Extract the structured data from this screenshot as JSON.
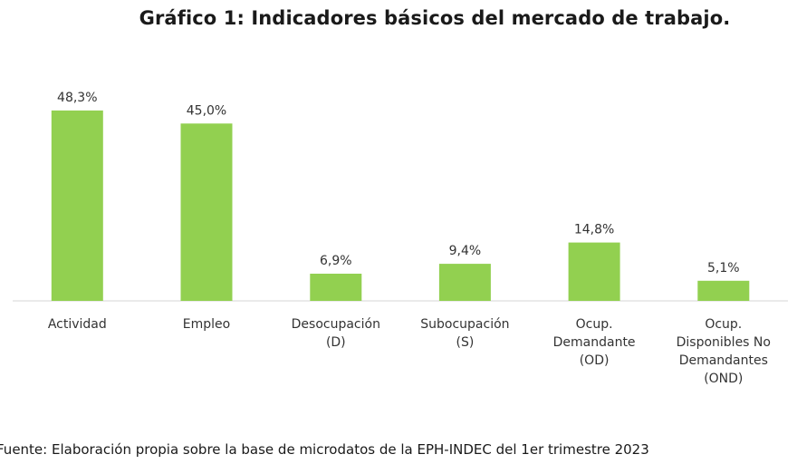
{
  "chart_data": {
    "type": "bar",
    "title": "Gráfico 1: Indicadores básicos del mercado de trabajo.",
    "categories": [
      "Actividad",
      "Empleo",
      "Desocupación (D)",
      "Subocupación (S)",
      "Ocup. Demandante (OD)",
      "Ocup. Disponibles No Demandantes (OND)"
    ],
    "category_lines": [
      [
        "Actividad"
      ],
      [
        "Empleo"
      ],
      [
        "Desocupación",
        "(D)"
      ],
      [
        "Subocupación",
        "(S)"
      ],
      [
        "Ocup.",
        "Demandante",
        "(OD)"
      ],
      [
        "Ocup.",
        "Disponibles No",
        "Demandantes",
        "(OND)"
      ]
    ],
    "values": [
      48.3,
      45.0,
      6.9,
      9.4,
      14.8,
      5.1
    ],
    "data_labels": [
      "48,3%",
      "45,0%",
      "6,9%",
      "9,4%",
      "14,8%",
      "5,1%"
    ],
    "unit": "%",
    "xlabel": "",
    "ylabel": "",
    "y_axis_visible": false,
    "grid": false,
    "legend": "none",
    "bar_color": "#92d050"
  },
  "footer": {
    "source": "Fuente: Elaboración propia sobre la base de microdatos de la EPH-INDEC del 1er trimestre 2023"
  }
}
